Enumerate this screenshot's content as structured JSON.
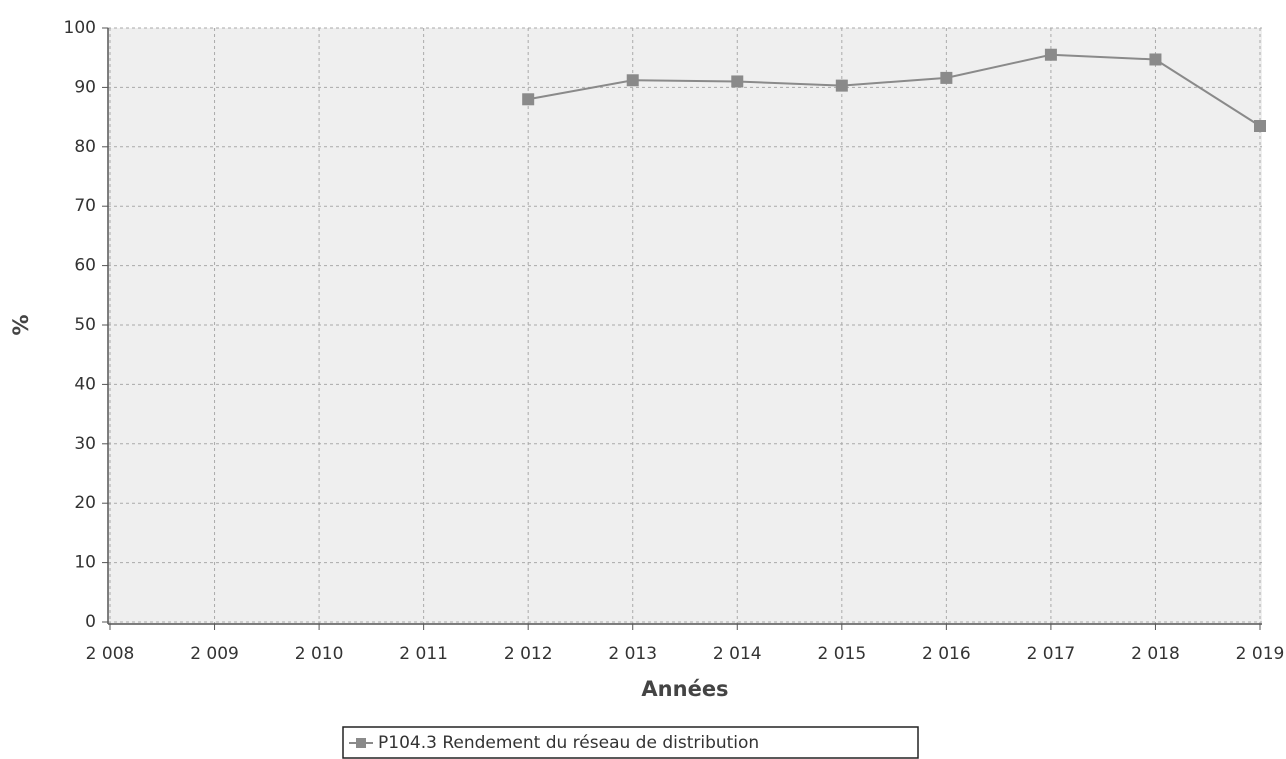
{
  "chart_data": {
    "type": "line",
    "x_label": "Années",
    "y_label": "%",
    "x": [
      2012,
      2013,
      2014,
      2015,
      2016,
      2017,
      2018,
      2019
    ],
    "series": [
      {
        "name": "P104.3 Rendement du réseau de distribution",
        "color": "#8a8a8a",
        "values": [
          88,
          91.2,
          91,
          90.3,
          91.6,
          95.5,
          94.7,
          83.5
        ]
      }
    ],
    "xlim": [
      2008,
      2019
    ],
    "xticks": [
      {
        "value": 2008,
        "label": "2 008"
      },
      {
        "value": 2009,
        "label": "2 009"
      },
      {
        "value": 2010,
        "label": "2 010"
      },
      {
        "value": 2011,
        "label": "2 011"
      },
      {
        "value": 2012,
        "label": "2 012"
      },
      {
        "value": 2013,
        "label": "2 013"
      },
      {
        "value": 2014,
        "label": "2 014"
      },
      {
        "value": 2015,
        "label": "2 015"
      },
      {
        "value": 2016,
        "label": "2 016"
      },
      {
        "value": 2017,
        "label": "2 017"
      },
      {
        "value": 2018,
        "label": "2 018"
      },
      {
        "value": 2019,
        "label": "2 019"
      }
    ],
    "ylim": [
      0,
      100
    ],
    "yticks": [
      0,
      10,
      20,
      30,
      40,
      50,
      60,
      70,
      80,
      90,
      100
    ],
    "grid": true,
    "legend": "bottom"
  }
}
